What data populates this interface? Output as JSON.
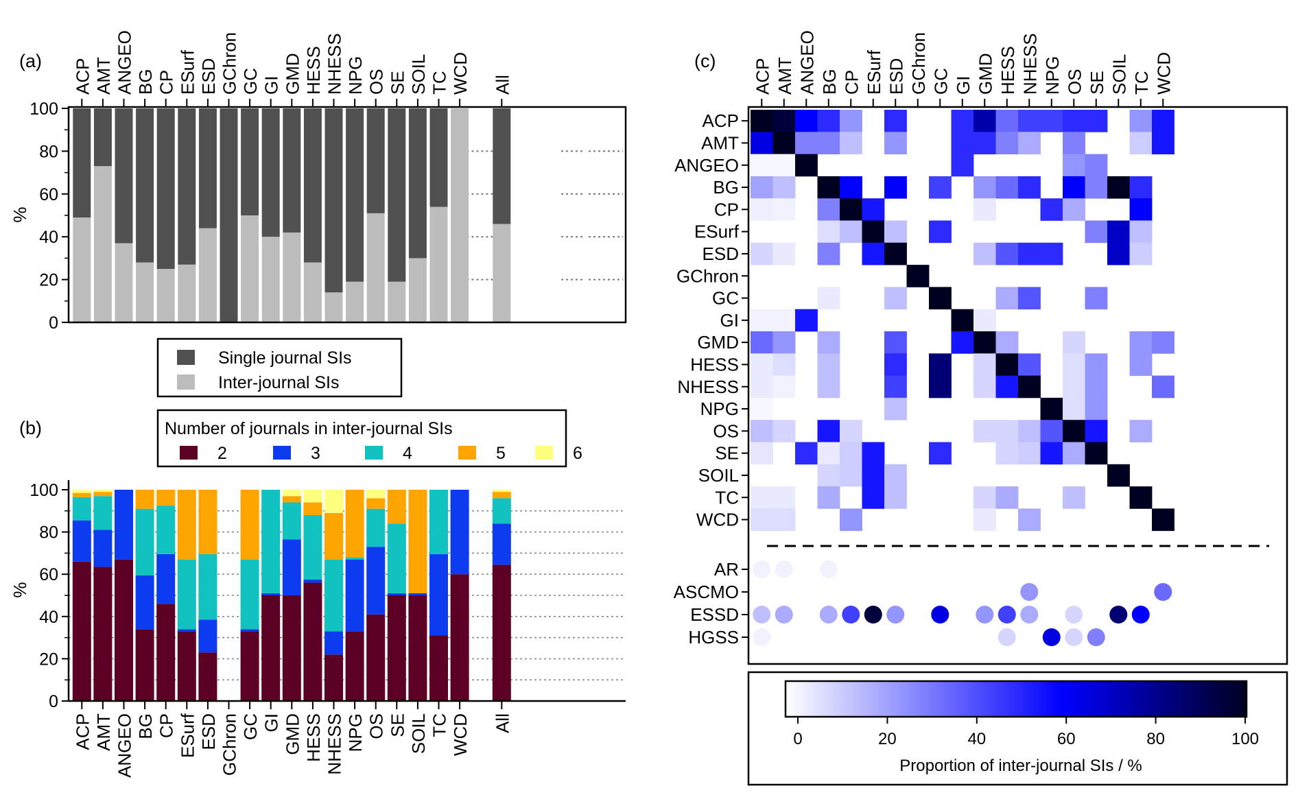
{
  "panel_labels": {
    "a": "(a)",
    "b": "(b)",
    "c": "(c)"
  },
  "chart_data": [
    {
      "panel": "(a)",
      "type": "bar",
      "stacked": true,
      "categories": [
        "ACP",
        "AMT",
        "ANGEO",
        "BG",
        "CP",
        "ESurf",
        "ESD",
        "GChron",
        "GC",
        "GI",
        "GMD",
        "HESS",
        "NHESS",
        "NPG",
        "OS",
        "SE",
        "SOIL",
        "TC",
        "WCD",
        "",
        "All"
      ],
      "ylabel": "%",
      "ylim": [
        0,
        100
      ],
      "yticks": [
        0,
        20,
        40,
        60,
        80,
        100
      ],
      "series": [
        {
          "name": "Inter-journal SIs",
          "color": "#bcbcbc",
          "values": [
            49,
            73,
            37,
            28,
            25,
            27,
            44,
            0,
            50,
            40,
            42,
            28,
            14,
            19,
            51,
            19,
            30,
            54,
            100,
            null,
            46
          ]
        },
        {
          "name": "Single journal SIs",
          "color": "#505050",
          "values": [
            51,
            27,
            63,
            72,
            75,
            73,
            56,
            100,
            50,
            60,
            58,
            72,
            86,
            81,
            49,
            81,
            70,
            46,
            0,
            null,
            54
          ]
        }
      ],
      "legend": {
        "placement": "below",
        "entries": [
          "Single journal SIs",
          "Inter-journal SIs"
        ]
      },
      "grid": "dotted lines in empty columns"
    },
    {
      "panel": "(b)",
      "type": "bar",
      "stacked": true,
      "categories": [
        "ACP",
        "AMT",
        "ANGEO",
        "BG",
        "CP",
        "ESurf",
        "ESD",
        "GChron",
        "GC",
        "GI",
        "GMD",
        "HESS",
        "NHESS",
        "NPG",
        "OS",
        "SE",
        "SOIL",
        "TC",
        "WCD",
        "",
        "All"
      ],
      "ylabel": "%",
      "ylim": [
        0,
        100
      ],
      "yticks": [
        0,
        20,
        40,
        60,
        80,
        100
      ],
      "legend_title": "Number of  journals in inter-journal SIs",
      "series": [
        {
          "name": "2",
          "color": "#5c0026",
          "values": [
            66,
            63.5,
            67,
            34,
            46,
            33,
            23,
            null,
            33,
            50,
            50,
            56,
            22,
            33,
            41,
            50,
            50,
            31,
            60,
            null,
            64.5
          ]
        },
        {
          "name": "3",
          "color": "#0d3cf0",
          "values": [
            19.5,
            17.5,
            33,
            25.5,
            23.5,
            1,
            15.5,
            null,
            1,
            1,
            26.5,
            1.5,
            11,
            34,
            32,
            1,
            1,
            38.5,
            40,
            null,
            19.5
          ]
        },
        {
          "name": "4",
          "color": "#12c2c0",
          "values": [
            11,
            16,
            0,
            31.5,
            23,
            33,
            31,
            null,
            33,
            49,
            17.5,
            30.5,
            34,
            1,
            18,
            33,
            0,
            30.5,
            0,
            null,
            12
          ]
        },
        {
          "name": "5",
          "color": "#ffa500",
          "values": [
            2,
            2,
            0,
            9,
            7.5,
            33,
            30.5,
            null,
            33,
            0,
            3,
            6,
            22,
            32,
            5,
            16,
            49,
            0,
            0,
            null,
            3
          ]
        },
        {
          "name": "6",
          "color": "#ffff80",
          "values": [
            1.5,
            1,
            0,
            0,
            0,
            0,
            0,
            null,
            0,
            0,
            3,
            6,
            11,
            0,
            4,
            0,
            0,
            0,
            0,
            null,
            1
          ]
        }
      ],
      "legend": {
        "placement": "top"
      }
    },
    {
      "panel": "(c)",
      "type": "heatmap",
      "columns": [
        "ACP",
        "AMT",
        "ANGEO",
        "BG",
        "CP",
        "ESurf",
        "ESD",
        "GChron",
        "GC",
        "GI",
        "GMD",
        "HESS",
        "NHESS",
        "NPG",
        "OS",
        "SE",
        "SOIL",
        "TC",
        "WCD"
      ],
      "rows": [
        "ACP",
        "AMT",
        "ANGEO",
        "BG",
        "CP",
        "ESurf",
        "ESD",
        "GChron",
        "GC",
        "GI",
        "GMD",
        "HESS",
        "NHESS",
        "NPG",
        "OS",
        "SE",
        "SOIL",
        "TC",
        "WCD"
      ],
      "values": [
        [
          100,
          95,
          60,
          50,
          25,
          0,
          50,
          0,
          0,
          50,
          75,
          35,
          45,
          45,
          50,
          50,
          0,
          25,
          55
        ],
        [
          65,
          100,
          30,
          30,
          15,
          0,
          25,
          0,
          0,
          50,
          50,
          30,
          20,
          0,
          30,
          0,
          0,
          12,
          55
        ],
        [
          2,
          2,
          100,
          0,
          0,
          0,
          0,
          0,
          0,
          50,
          0,
          0,
          0,
          0,
          25,
          30,
          0,
          0,
          0
        ],
        [
          22,
          15,
          0,
          100,
          60,
          0,
          60,
          0,
          45,
          0,
          25,
          35,
          50,
          0,
          60,
          30,
          100,
          50,
          0
        ],
        [
          4,
          3,
          0,
          30,
          100,
          55,
          0,
          0,
          0,
          0,
          5,
          0,
          0,
          50,
          20,
          0,
          0,
          60,
          0
        ],
        [
          0,
          0,
          0,
          8,
          15,
          100,
          15,
          0,
          50,
          0,
          0,
          0,
          0,
          0,
          0,
          30,
          70,
          15,
          0
        ],
        [
          10,
          5,
          0,
          30,
          0,
          55,
          100,
          0,
          0,
          0,
          15,
          40,
          50,
          50,
          0,
          0,
          70,
          12,
          0
        ],
        [
          0,
          0,
          0,
          0,
          0,
          0,
          0,
          100,
          0,
          0,
          0,
          0,
          0,
          0,
          0,
          0,
          0,
          0,
          0
        ],
        [
          0,
          0,
          0,
          5,
          0,
          0,
          15,
          0,
          100,
          0,
          0,
          20,
          40,
          0,
          0,
          30,
          0,
          0,
          0
        ],
        [
          3,
          3,
          55,
          0,
          0,
          0,
          0,
          0,
          0,
          100,
          5,
          0,
          0,
          0,
          0,
          0,
          0,
          0,
          0
        ],
        [
          35,
          25,
          0,
          20,
          0,
          0,
          40,
          0,
          0,
          55,
          100,
          20,
          0,
          0,
          10,
          0,
          0,
          25,
          30
        ],
        [
          5,
          8,
          0,
          15,
          0,
          0,
          50,
          0,
          85,
          0,
          10,
          100,
          40,
          0,
          8,
          25,
          0,
          25,
          0
        ],
        [
          5,
          3,
          0,
          15,
          0,
          0,
          45,
          0,
          85,
          0,
          10,
          55,
          100,
          0,
          8,
          25,
          0,
          0,
          35
        ],
        [
          2,
          0,
          0,
          0,
          0,
          0,
          15,
          0,
          0,
          0,
          0,
          0,
          0,
          100,
          8,
          25,
          0,
          0,
          0
        ],
        [
          15,
          10,
          0,
          55,
          10,
          0,
          0,
          0,
          0,
          0,
          10,
          10,
          15,
          40,
          100,
          55,
          0,
          20,
          0
        ],
        [
          6,
          0,
          50,
          5,
          12,
          55,
          0,
          0,
          50,
          0,
          0,
          10,
          12,
          55,
          20,
          100,
          0,
          0,
          0
        ],
        [
          0,
          0,
          0,
          10,
          12,
          55,
          15,
          0,
          0,
          0,
          0,
          0,
          0,
          0,
          0,
          0,
          100,
          0,
          0
        ],
        [
          5,
          5,
          0,
          20,
          0,
          55,
          15,
          0,
          0,
          0,
          10,
          20,
          0,
          0,
          15,
          0,
          0,
          100,
          0
        ],
        [
          8,
          8,
          0,
          0,
          25,
          0,
          0,
          0,
          0,
          0,
          5,
          0,
          20,
          0,
          0,
          0,
          0,
          0,
          100
        ]
      ],
      "dot_rows": [
        "AR",
        "ASCMO",
        "ESSD",
        "HGSS"
      ],
      "dot_values": [
        [
          3,
          3,
          0,
          3,
          0,
          0,
          0,
          0,
          0,
          0,
          0,
          0,
          0,
          0,
          0,
          0,
          0,
          0,
          0
        ],
        [
          0,
          0,
          0,
          0,
          0,
          0,
          0,
          0,
          0,
          0,
          0,
          0,
          25,
          0,
          0,
          0,
          0,
          0,
          35
        ],
        [
          15,
          20,
          0,
          20,
          45,
          95,
          25,
          0,
          65,
          0,
          25,
          45,
          20,
          0,
          10,
          0,
          85,
          60,
          0
        ],
        [
          3,
          0,
          0,
          0,
          0,
          0,
          0,
          0,
          0,
          0,
          0,
          10,
          0,
          65,
          10,
          30,
          0,
          0,
          0
        ]
      ],
      "colorbar": {
        "label": "Proportion of inter-journal SIs / %",
        "ticks": [
          0,
          20,
          40,
          60,
          80,
          100
        ],
        "range": [
          0,
          100
        ],
        "colors": [
          "#ffffff",
          "#0000ff",
          "#000020"
        ]
      }
    }
  ]
}
